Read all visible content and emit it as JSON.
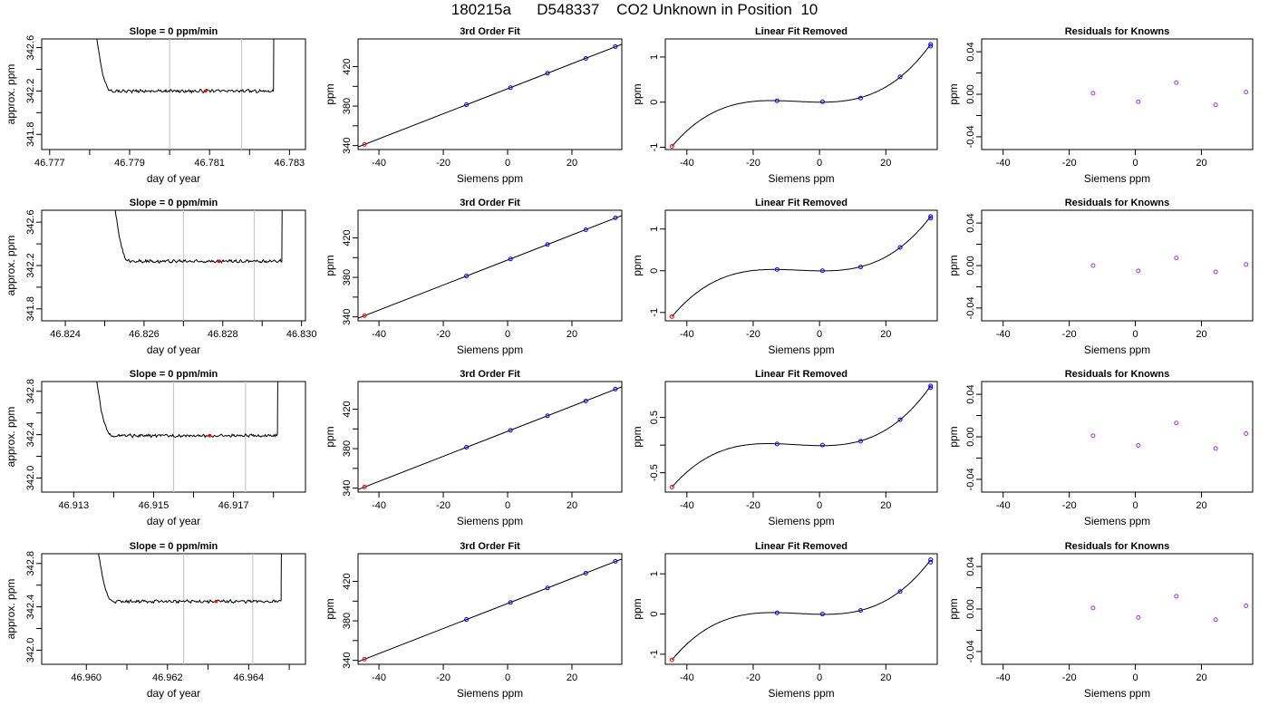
{
  "page": {
    "title": "180215a      D548337    CO2 Unknown in Position  10"
  },
  "colors": {
    "trace": "#000000",
    "window_line": "#c8c8c8",
    "point_red": "#ff0000",
    "point_blue": "#0000ff",
    "residual_purple": "#9b30ff"
  },
  "chart_data": [
    {
      "type": "line",
      "panel": "slope",
      "title": "Slope =  0  ppm/min",
      "xlabel": "day of year",
      "ylabel": "approx. ppm",
      "xlim": [
        46.7768,
        46.7834
      ],
      "ylim": [
        341.66,
        342.68
      ],
      "xticks": [
        46.777,
        46.779,
        46.781,
        46.783
      ],
      "yticks": [
        341.8,
        342.2,
        342.6
      ],
      "window": [
        46.78,
        46.7818
      ],
      "trace_start": 46.7779,
      "trace_end": 46.7826,
      "level": 342.2,
      "marker_x": 46.7809
    },
    {
      "type": "scatter",
      "panel": "fit",
      "title": "3rd Order Fit",
      "xlabel": "Siemens ppm",
      "ylabel": "ppm",
      "xlim": [
        -46.5,
        35.5
      ],
      "ylim": [
        336,
        448
      ],
      "xticks": [
        -40,
        -20,
        0,
        20
      ],
      "yticks": [
        340,
        380,
        420
      ],
      "points": [
        [
          -44.5,
          341.2
        ],
        [
          -12.8,
          381.4
        ],
        [
          0.9,
          398.6
        ],
        [
          12.4,
          413.3
        ],
        [
          24.3,
          428.3
        ],
        [
          33.5,
          440.3
        ]
      ]
    },
    {
      "type": "scatter",
      "panel": "linear",
      "title": "Linear Fit Removed",
      "xlabel": "Siemens ppm",
      "ylabel": "ppm",
      "xlim": [
        -46.5,
        35.5
      ],
      "ylim": [
        -1.05,
        1.4
      ],
      "xticks": [
        -40,
        -20,
        0,
        20
      ],
      "yticks": [
        -1.0,
        0.0,
        1.0
      ],
      "points": [
        [
          -44.5,
          -0.98
        ],
        [
          -12.8,
          0.03
        ],
        [
          0.9,
          0.01
        ],
        [
          12.4,
          0.09
        ],
        [
          24.3,
          0.56
        ],
        [
          33.5,
          1.28
        ]
      ],
      "points_blue_extra": [
        [
          33.5,
          1.24
        ]
      ]
    },
    {
      "type": "scatter",
      "panel": "resid",
      "title": "Residuals for Knowns",
      "xlabel": "Siemens ppm",
      "ylabel": "ppm",
      "xlim": [
        -46.5,
        35.5
      ],
      "ylim": [
        -0.052,
        0.052
      ],
      "xticks": [
        -40,
        -20,
        0,
        20
      ],
      "yticks": [
        -0.04,
        0.0,
        0.04
      ],
      "points": [
        [
          -12.8,
          0.001
        ],
        [
          0.9,
          -0.007
        ],
        [
          12.4,
          0.011
        ],
        [
          24.3,
          -0.01
        ],
        [
          33.5,
          0.002
        ]
      ]
    },
    {
      "type": "line",
      "panel": "slope",
      "title": "Slope =  0  ppm/min",
      "xlabel": "day of year",
      "ylabel": "approx. ppm",
      "xlim": [
        46.8234,
        46.8301
      ],
      "ylim": [
        341.69,
        342.71
      ],
      "xticks": [
        46.824,
        46.826,
        46.828,
        46.83
      ],
      "yticks": [
        341.8,
        342.2,
        342.6
      ],
      "window": [
        46.827,
        46.8288
      ],
      "trace_start": 46.825,
      "trace_end": 46.8295,
      "level": 342.24,
      "marker_x": 46.8279
    },
    {
      "type": "scatter",
      "panel": "fit",
      "title": "3rd Order Fit",
      "xlabel": "Siemens ppm",
      "ylabel": "ppm",
      "xlim": [
        -46.5,
        35.5
      ],
      "ylim": [
        336,
        448
      ],
      "xticks": [
        -40,
        -20,
        0,
        20
      ],
      "yticks": [
        340,
        380,
        420
      ],
      "points": [
        [
          -44.5,
          341.2
        ],
        [
          -12.8,
          381.4
        ],
        [
          0.9,
          398.6
        ],
        [
          12.4,
          413.3
        ],
        [
          24.3,
          428.3
        ],
        [
          33.5,
          440.3
        ]
      ]
    },
    {
      "type": "scatter",
      "panel": "linear",
      "title": "Linear Fit Removed",
      "xlabel": "Siemens ppm",
      "ylabel": "ppm",
      "xlim": [
        -46.5,
        35.5
      ],
      "ylim": [
        -1.2,
        1.45
      ],
      "xticks": [
        -40,
        -20,
        0,
        20
      ],
      "yticks": [
        -1.0,
        0.0,
        1.0
      ],
      "points": [
        [
          -44.5,
          -1.1
        ],
        [
          -12.8,
          0.03
        ],
        [
          0.9,
          0.0
        ],
        [
          12.4,
          0.09
        ],
        [
          24.3,
          0.56
        ],
        [
          33.5,
          1.3
        ]
      ],
      "points_blue_extra": [
        [
          33.5,
          1.26
        ]
      ]
    },
    {
      "type": "scatter",
      "panel": "resid",
      "title": "Residuals for Knowns",
      "xlabel": "Siemens ppm",
      "ylabel": "ppm",
      "xlim": [
        -46.5,
        35.5
      ],
      "ylim": [
        -0.052,
        0.052
      ],
      "xticks": [
        -40,
        -20,
        0,
        20
      ],
      "yticks": [
        -0.04,
        0.0,
        0.04
      ],
      "points": [
        [
          -12.8,
          0.0
        ],
        [
          0.9,
          -0.005
        ],
        [
          12.4,
          0.007
        ],
        [
          24.3,
          -0.006
        ],
        [
          33.5,
          0.001
        ]
      ]
    },
    {
      "type": "line",
      "panel": "slope",
      "title": "Slope =  0  ppm/min",
      "xlabel": "day of year",
      "ylabel": "approx. ppm",
      "xlim": [
        46.9122,
        46.9188
      ],
      "ylim": [
        341.87,
        342.89
      ],
      "xticks": [
        46.913,
        46.915,
        46.917
      ],
      "yticks": [
        342.0,
        342.4,
        342.8
      ],
      "window": [
        46.9155,
        46.9173
      ],
      "trace_start": 46.9133,
      "trace_end": 46.9181,
      "level": 342.39,
      "marker_x": 46.9164
    },
    {
      "type": "scatter",
      "panel": "fit",
      "title": "3rd Order Fit",
      "xlabel": "Siemens ppm",
      "ylabel": "ppm",
      "xlim": [
        -46.5,
        35.5
      ],
      "ylim": [
        336,
        448
      ],
      "xticks": [
        -40,
        -20,
        0,
        20
      ],
      "yticks": [
        340,
        380,
        420
      ],
      "points": [
        [
          -44.5,
          341.2
        ],
        [
          -12.8,
          381.4
        ],
        [
          0.9,
          398.6
        ],
        [
          12.4,
          413.3
        ],
        [
          24.3,
          428.3
        ],
        [
          33.5,
          440.3
        ]
      ]
    },
    {
      "type": "scatter",
      "panel": "linear",
      "title": "Linear Fit Removed",
      "xlabel": "Siemens ppm",
      "ylabel": "ppm",
      "xlim": [
        -46.5,
        35.5
      ],
      "ylim": [
        -0.85,
        1.15
      ],
      "xticks": [
        -40,
        -20,
        0,
        20
      ],
      "yticks": [
        -0.5,
        0.5
      ],
      "points": [
        [
          -44.5,
          -0.76
        ],
        [
          -12.8,
          0.02
        ],
        [
          0.9,
          0.0
        ],
        [
          12.4,
          0.07
        ],
        [
          24.3,
          0.46
        ],
        [
          33.5,
          1.07
        ]
      ],
      "points_blue_extra": [
        [
          33.5,
          1.04
        ]
      ]
    },
    {
      "type": "scatter",
      "panel": "resid",
      "title": "Residuals for Knowns",
      "xlabel": "Siemens ppm",
      "ylabel": "ppm",
      "xlim": [
        -46.5,
        35.5
      ],
      "ylim": [
        -0.052,
        0.052
      ],
      "xticks": [
        -40,
        -20,
        0,
        20
      ],
      "yticks": [
        -0.04,
        0.0,
        0.04
      ],
      "points": [
        [
          -12.8,
          0.001
        ],
        [
          0.9,
          -0.008
        ],
        [
          12.4,
          0.013
        ],
        [
          24.3,
          -0.011
        ],
        [
          33.5,
          0.003
        ]
      ]
    },
    {
      "type": "line",
      "panel": "slope",
      "title": "Slope =  0  ppm/min",
      "xlabel": "day of year",
      "ylabel": "approx. ppm",
      "xlim": [
        46.9589,
        46.9654
      ],
      "ylim": [
        341.87,
        342.89
      ],
      "xticks": [
        46.96,
        46.962,
        46.964
      ],
      "yticks": [
        342.0,
        342.4,
        342.8
      ],
      "window": [
        46.9624,
        46.9641
      ],
      "trace_start": 46.96,
      "trace_end": 46.9648,
      "level": 342.45,
      "marker_x": 46.9632
    },
    {
      "type": "scatter",
      "panel": "fit",
      "title": "3rd Order Fit",
      "xlabel": "Siemens ppm",
      "ylabel": "ppm",
      "xlim": [
        -46.5,
        35.5
      ],
      "ylim": [
        336,
        448
      ],
      "xticks": [
        -40,
        -20,
        0,
        20
      ],
      "yticks": [
        340,
        380,
        420
      ],
      "points": [
        [
          -44.5,
          341.2
        ],
        [
          -12.8,
          381.4
        ],
        [
          0.9,
          398.6
        ],
        [
          12.4,
          413.3
        ],
        [
          24.3,
          428.3
        ],
        [
          33.5,
          440.3
        ]
      ]
    },
    {
      "type": "scatter",
      "panel": "linear",
      "title": "Linear Fit Removed",
      "xlabel": "Siemens ppm",
      "ylabel": "ppm",
      "xlim": [
        -46.5,
        35.5
      ],
      "ylim": [
        -1.25,
        1.5
      ],
      "xticks": [
        -40,
        -20,
        0,
        20
      ],
      "yticks": [
        -1.0,
        0.0,
        1.0
      ],
      "points": [
        [
          -44.5,
          -1.14
        ],
        [
          -12.8,
          0.03
        ],
        [
          0.9,
          0.0
        ],
        [
          12.4,
          0.09
        ],
        [
          24.3,
          0.56
        ],
        [
          33.5,
          1.35
        ]
      ],
      "points_blue_extra": [
        [
          33.5,
          1.29
        ]
      ]
    },
    {
      "type": "scatter",
      "panel": "resid",
      "title": "Residuals for Knowns",
      "xlabel": "Siemens ppm",
      "ylabel": "ppm",
      "xlim": [
        -46.5,
        35.5
      ],
      "ylim": [
        -0.052,
        0.052
      ],
      "xticks": [
        -40,
        -20,
        0,
        20
      ],
      "yticks": [
        -0.04,
        0.0,
        0.04
      ],
      "points": [
        [
          -12.8,
          0.001
        ],
        [
          0.9,
          -0.008
        ],
        [
          12.4,
          0.012
        ],
        [
          24.3,
          -0.01
        ],
        [
          33.5,
          0.003
        ]
      ]
    }
  ]
}
